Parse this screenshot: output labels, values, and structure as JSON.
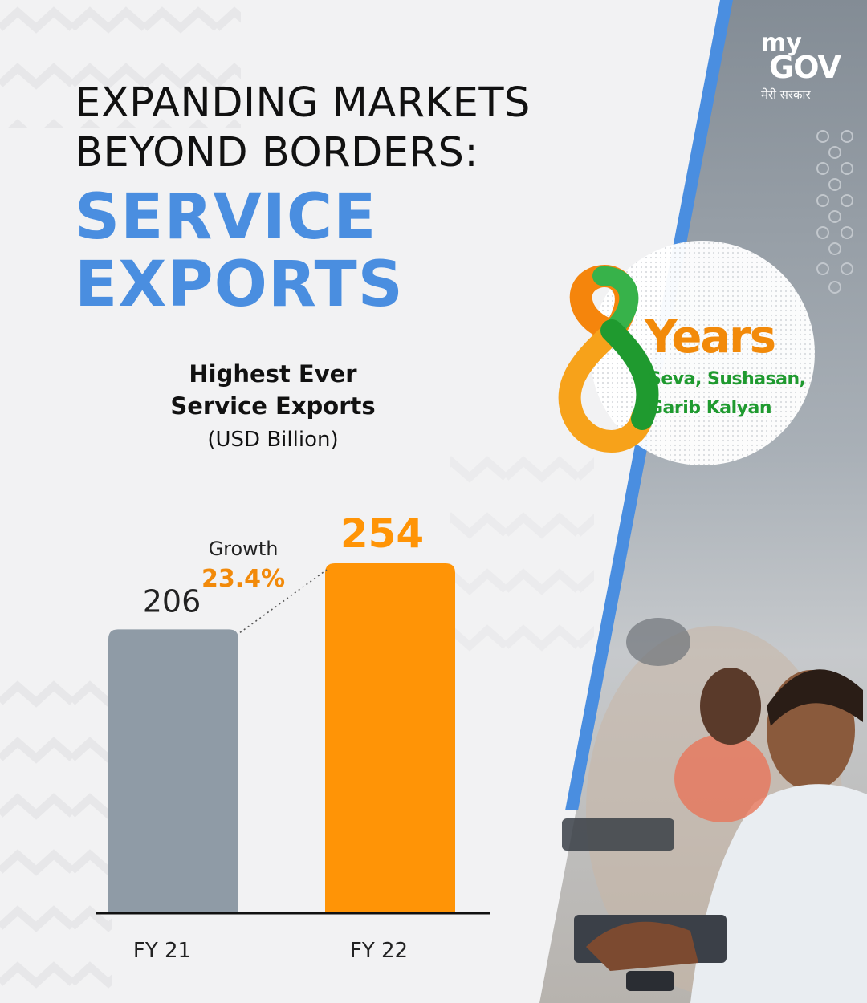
{
  "title": {
    "line1": "EXPANDING MARKETS",
    "line2": "BEYOND BORDERS:",
    "highlight1": "SERVICE",
    "highlight2": "EXPORTS"
  },
  "logo": {
    "my": "my",
    "gov": "GOV",
    "tagline": "मेरी सरकार"
  },
  "badge": {
    "number": "8",
    "word": "Years",
    "tagline1": "Seva, Sushasan,",
    "tagline2": "Garib Kalyan"
  },
  "colors": {
    "title_accent": "#4a8ee0",
    "fy21_bar": "#8f9ba6",
    "fy22_bar": "#ff9406",
    "growth_accent": "#f28a0a",
    "panel": "#8a949c",
    "divider_stripe": "#4a8ee0"
  },
  "chart_data": {
    "type": "bar",
    "title": "Highest Ever Service Exports",
    "subtitle": "(USD Billion)",
    "categories": [
      "FY 21",
      "FY 22"
    ],
    "values": [
      206,
      254
    ],
    "data_labels": [
      "206",
      "254"
    ],
    "annotation": {
      "label": "Growth",
      "value": "23.4%"
    },
    "grid": false,
    "legend": "none"
  }
}
